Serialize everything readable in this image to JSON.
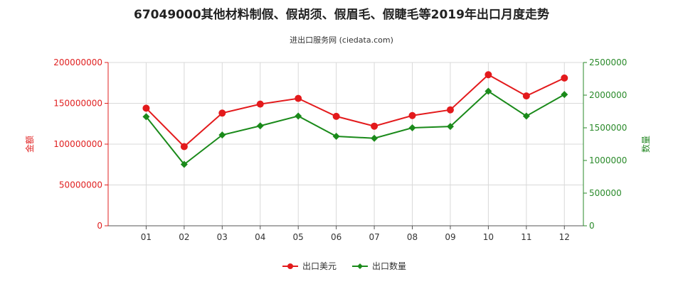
{
  "chart_data": {
    "type": "line",
    "title": "67049000其他材料制假、假胡须、假眉毛、假睫毛等2019年出口月度走势",
    "subtitle": "进出口服务网 (ciedata.com)",
    "categories": [
      "01",
      "02",
      "03",
      "04",
      "05",
      "06",
      "07",
      "08",
      "09",
      "10",
      "11",
      "12"
    ],
    "left_axis": {
      "label": "金额",
      "ylim": [
        0,
        200000000
      ],
      "ticks": [
        "0",
        "50000000",
        "100000000",
        "150000000",
        "200000000"
      ],
      "color": "#e02020"
    },
    "right_axis": {
      "label": "数量",
      "ylim": [
        0,
        2500000
      ],
      "ticks": [
        "0",
        "500000",
        "1000000",
        "1500000",
        "2000000",
        "2500000"
      ],
      "color": "#2a8a2a"
    },
    "series": [
      {
        "name": "出口美元",
        "axis": "left",
        "color": "#e31a1c",
        "marker": "circle",
        "values": [
          144000000,
          97000000,
          138000000,
          149000000,
          156000000,
          134000000,
          122000000,
          135000000,
          142000000,
          185000000,
          159000000,
          181000000
        ]
      },
      {
        "name": "出口数量",
        "axis": "right",
        "color": "#1a8a1a",
        "marker": "diamond",
        "values": [
          1670000,
          940000,
          1390000,
          1530000,
          1680000,
          1370000,
          1340000,
          1500000,
          1520000,
          2060000,
          1680000,
          2010000
        ]
      }
    ],
    "grid": true,
    "legend": "bottom-center"
  }
}
